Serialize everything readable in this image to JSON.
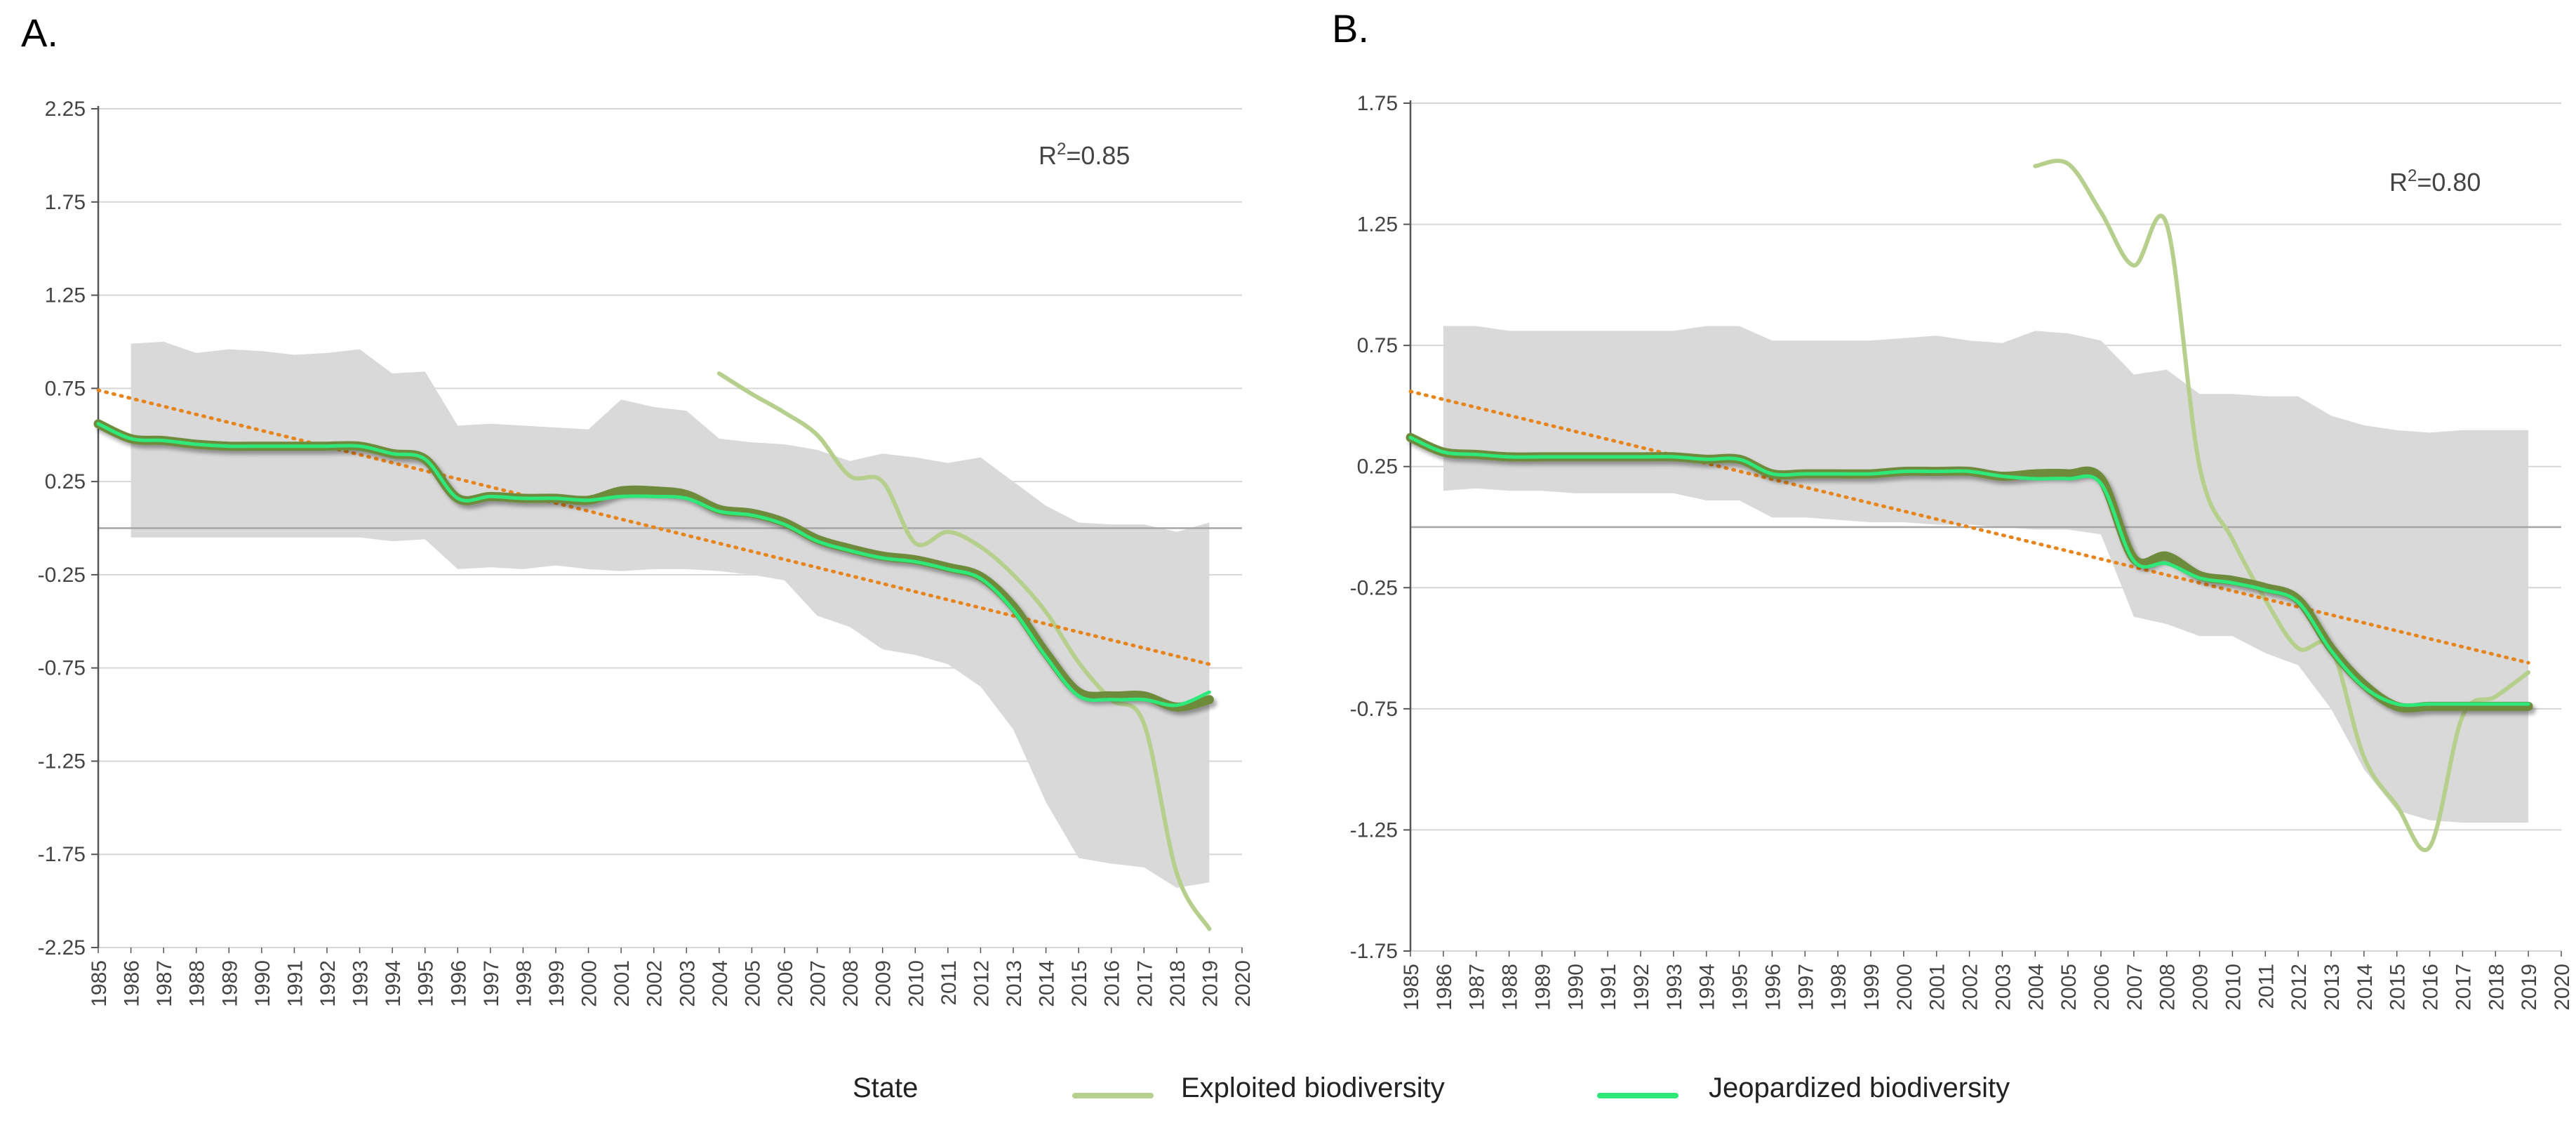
{
  "chart_data": [
    {
      "panel_label": "A.",
      "type": "line",
      "annotation": {
        "R2_text": "R",
        "R2_sup": "2",
        "R2_value": "=0.85"
      },
      "ylim": [
        -2.25,
        2.25
      ],
      "yticks": [
        2.25,
        1.75,
        1.25,
        0.75,
        0.25,
        -0.25,
        -0.75,
        -1.25,
        -1.75,
        -2.25
      ],
      "ytick_labels": [
        "2.25",
        "1.75",
        "1.25",
        "0.75",
        "0.25",
        "-0.25",
        "-0.75",
        "-1.25",
        "-1.75",
        "-2.25"
      ],
      "x_categories": [
        "1985",
        "1986",
        "1987",
        "1988",
        "1989",
        "1990",
        "1991",
        "1992",
        "1993",
        "1994",
        "1995",
        "1996",
        "1997",
        "1998",
        "1999",
        "2000",
        "2001",
        "2002",
        "2003",
        "2004",
        "2005",
        "2006",
        "2007",
        "2008",
        "2009",
        "2010",
        "2011",
        "2012",
        "2013",
        "2014",
        "2015",
        "2016",
        "2017",
        "2018",
        "2019",
        "2020"
      ],
      "band": {
        "x": [
          1986,
          1987,
          1988,
          1989,
          1990,
          1991,
          1992,
          1993,
          1994,
          1995,
          1996,
          1997,
          1998,
          1999,
          2000,
          2001,
          2002,
          2003,
          2004,
          2005,
          2006,
          2007,
          2008,
          2009,
          2010,
          2011,
          2012,
          2013,
          2014,
          2015,
          2016,
          2017,
          2018,
          2019
        ],
        "upper": [
          0.99,
          1.0,
          0.94,
          0.96,
          0.95,
          0.93,
          0.94,
          0.96,
          0.83,
          0.84,
          0.55,
          0.56,
          0.55,
          0.54,
          0.53,
          0.69,
          0.65,
          0.63,
          0.48,
          0.46,
          0.45,
          0.42,
          0.36,
          0.4,
          0.38,
          0.35,
          0.38,
          0.25,
          0.12,
          0.03,
          0.02,
          0.02,
          -0.02,
          0.03
        ],
        "lower": [
          -0.05,
          -0.05,
          -0.05,
          -0.05,
          -0.05,
          -0.05,
          -0.05,
          -0.05,
          -0.07,
          -0.06,
          -0.22,
          -0.21,
          -0.22,
          -0.2,
          -0.22,
          -0.23,
          -0.22,
          -0.22,
          -0.23,
          -0.25,
          -0.28,
          -0.47,
          -0.53,
          -0.65,
          -0.68,
          -0.73,
          -0.85,
          -1.08,
          -1.47,
          -1.77,
          -1.8,
          -1.82,
          -1.93,
          -1.9
        ]
      },
      "trend": {
        "name": "Linear trend",
        "from": [
          1985,
          0.74
        ],
        "to": [
          2019,
          -0.73
        ]
      },
      "series": [
        {
          "name": "Exploited biodiversity",
          "x": [
            2004,
            2005,
            2006,
            2007,
            2008,
            2009,
            2010,
            2011,
            2012,
            2013,
            2014,
            2015,
            2016,
            2017,
            2018,
            2019
          ],
          "y": [
            0.83,
            0.72,
            0.62,
            0.5,
            0.28,
            0.25,
            -0.08,
            -0.02,
            -0.1,
            -0.25,
            -0.45,
            -0.72,
            -0.92,
            -1.05,
            -1.85,
            -2.15
          ]
        },
        {
          "name": "State",
          "x": [
            1985,
            1986,
            1987,
            1988,
            1989,
            1990,
            1991,
            1992,
            1993,
            1994,
            1995,
            1996,
            1997,
            1998,
            1999,
            2000,
            2001,
            2002,
            2003,
            2004,
            2005,
            2006,
            2007,
            2008,
            2009,
            2010,
            2011,
            2012,
            2013,
            2014,
            2015,
            2016,
            2017,
            2018,
            2019
          ],
          "y": [
            0.56,
            0.48,
            0.47,
            0.45,
            0.44,
            0.44,
            0.44,
            0.44,
            0.44,
            0.4,
            0.37,
            0.16,
            0.17,
            0.16,
            0.16,
            0.15,
            0.2,
            0.2,
            0.18,
            0.1,
            0.08,
            0.03,
            -0.06,
            -0.11,
            -0.15,
            -0.17,
            -0.21,
            -0.26,
            -0.42,
            -0.67,
            -0.88,
            -0.9,
            -0.9,
            -0.96,
            -0.92
          ]
        },
        {
          "name": "Jeopardized biodiversity",
          "x": [
            1985,
            1986,
            1987,
            1988,
            1989,
            1990,
            1991,
            1992,
            1993,
            1994,
            1995,
            1996,
            1997,
            1998,
            1999,
            2000,
            2001,
            2002,
            2003,
            2004,
            2005,
            2006,
            2007,
            2008,
            2009,
            2010,
            2011,
            2012,
            2013,
            2014,
            2015,
            2016,
            2017,
            2018,
            2019
          ],
          "y": [
            0.56,
            0.48,
            0.47,
            0.45,
            0.44,
            0.44,
            0.44,
            0.44,
            0.44,
            0.4,
            0.37,
            0.16,
            0.17,
            0.16,
            0.16,
            0.15,
            0.17,
            0.17,
            0.16,
            0.09,
            0.07,
            0.02,
            -0.07,
            -0.12,
            -0.16,
            -0.18,
            -0.22,
            -0.27,
            -0.44,
            -0.69,
            -0.9,
            -0.92,
            -0.92,
            -0.95,
            -0.88
          ]
        }
      ]
    },
    {
      "panel_label": "B.",
      "type": "line",
      "annotation": {
        "R2_text": "R",
        "R2_sup": "2",
        "R2_value": "=0.80"
      },
      "ylim": [
        -1.75,
        1.75
      ],
      "yticks": [
        1.75,
        1.25,
        0.75,
        0.25,
        -0.25,
        -0.75,
        -1.25,
        -1.75
      ],
      "ytick_labels": [
        "1.75",
        "1.25",
        "0.75",
        "0.25",
        "-0.25",
        "-0.75",
        "-1.25",
        "-1.75"
      ],
      "x_categories": [
        "1985",
        "1986",
        "1987",
        "1988",
        "1989",
        "1990",
        "1991",
        "1992",
        "1993",
        "1994",
        "1995",
        "1996",
        "1997",
        "1998",
        "1999",
        "2000",
        "2001",
        "2002",
        "2003",
        "2004",
        "2005",
        "2006",
        "2007",
        "2008",
        "2009",
        "2010",
        "2011",
        "2012",
        "2013",
        "2014",
        "2015",
        "2016",
        "2017",
        "2018",
        "2019",
        "2020"
      ],
      "band": {
        "x": [
          1986,
          1987,
          1988,
          1989,
          1990,
          1991,
          1992,
          1993,
          1994,
          1995,
          1996,
          1997,
          1998,
          1999,
          2000,
          2001,
          2002,
          2003,
          2004,
          2005,
          2006,
          2007,
          2008,
          2009,
          2010,
          2011,
          2012,
          2013,
          2014,
          2015,
          2016,
          2017,
          2018,
          2019
        ],
        "upper": [
          0.83,
          0.83,
          0.81,
          0.81,
          0.81,
          0.81,
          0.81,
          0.81,
          0.83,
          0.83,
          0.77,
          0.77,
          0.77,
          0.77,
          0.78,
          0.79,
          0.77,
          0.76,
          0.81,
          0.8,
          0.77,
          0.63,
          0.65,
          0.55,
          0.55,
          0.54,
          0.54,
          0.46,
          0.42,
          0.4,
          0.39,
          0.4,
          0.4,
          0.4
        ],
        "lower": [
          0.15,
          0.16,
          0.15,
          0.15,
          0.14,
          0.14,
          0.14,
          0.14,
          0.11,
          0.11,
          0.04,
          0.04,
          0.03,
          0.02,
          0.02,
          0.01,
          0.01,
          0.0,
          -0.01,
          -0.01,
          -0.03,
          -0.37,
          -0.4,
          -0.45,
          -0.45,
          -0.52,
          -0.57,
          -0.75,
          -1.0,
          -1.17,
          -1.21,
          -1.22,
          -1.22,
          -1.22
        ]
      },
      "trend": {
        "name": "Linear trend",
        "from": [
          1985,
          0.56
        ],
        "to": [
          2019,
          -0.56
        ]
      },
      "series": [
        {
          "name": "Exploited biodiversity",
          "x": [
            2004,
            2005,
            2006,
            2007,
            2008,
            2009,
            2010,
            2011,
            2012,
            2013,
            2014,
            2015,
            2016,
            2017,
            2018,
            2019
          ],
          "y": [
            1.49,
            1.5,
            1.3,
            1.08,
            1.25,
            0.25,
            -0.05,
            -0.3,
            -0.5,
            -0.5,
            -0.95,
            -1.15,
            -1.32,
            -0.78,
            -0.7,
            -0.6
          ]
        },
        {
          "name": "State",
          "x": [
            1985,
            1986,
            1987,
            1988,
            1989,
            1990,
            1991,
            1992,
            1993,
            1994,
            1995,
            1996,
            1997,
            1998,
            1999,
            2000,
            2001,
            2002,
            2003,
            2004,
            2005,
            2006,
            2007,
            2008,
            2009,
            2010,
            2011,
            2012,
            2013,
            2014,
            2015,
            2016,
            2017,
            2018,
            2019
          ],
          "y": [
            0.37,
            0.31,
            0.3,
            0.29,
            0.29,
            0.29,
            0.29,
            0.29,
            0.29,
            0.28,
            0.28,
            0.22,
            0.22,
            0.22,
            0.22,
            0.23,
            0.23,
            0.23,
            0.21,
            0.22,
            0.22,
            0.2,
            -0.13,
            -0.12,
            -0.2,
            -0.22,
            -0.25,
            -0.3,
            -0.5,
            -0.65,
            -0.74,
            -0.74,
            -0.74,
            -0.74,
            -0.74
          ]
        },
        {
          "name": "Jeopardized biodiversity",
          "x": [
            1985,
            1986,
            1987,
            1988,
            1989,
            1990,
            1991,
            1992,
            1993,
            1994,
            1995,
            1996,
            1997,
            1998,
            1999,
            2000,
            2001,
            2002,
            2003,
            2004,
            2005,
            2006,
            2007,
            2008,
            2009,
            2010,
            2011,
            2012,
            2013,
            2014,
            2015,
            2016,
            2017,
            2018,
            2019
          ],
          "y": [
            0.37,
            0.31,
            0.3,
            0.29,
            0.29,
            0.29,
            0.29,
            0.29,
            0.29,
            0.28,
            0.28,
            0.22,
            0.22,
            0.22,
            0.22,
            0.23,
            0.23,
            0.23,
            0.21,
            0.2,
            0.2,
            0.18,
            -0.14,
            -0.15,
            -0.21,
            -0.23,
            -0.26,
            -0.31,
            -0.51,
            -0.66,
            -0.73,
            -0.73,
            -0.73,
            -0.73,
            -0.73
          ]
        }
      ]
    }
  ],
  "legend": {
    "items": [
      {
        "key": "state",
        "label": "State"
      },
      {
        "key": "exploited",
        "label": "Exploited biodiversity"
      },
      {
        "key": "jeopardized",
        "label": "Jeopardized biodiversity"
      }
    ]
  },
  "colors": {
    "state": "#6e8a3a",
    "exploited": "#b7cf8c",
    "jeopardized": "#2ee879",
    "trend": "#e8841c",
    "band": "#d9d9d9",
    "grid": "#d6d6d6",
    "axis": "#555555"
  }
}
